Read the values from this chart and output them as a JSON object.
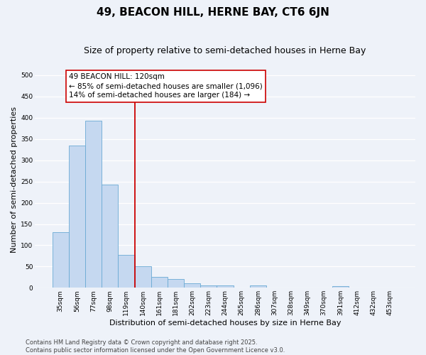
{
  "title": "49, BEACON HILL, HERNE BAY, CT6 6JN",
  "subtitle": "Size of property relative to semi-detached houses in Herne Bay",
  "xlabel": "Distribution of semi-detached houses by size in Herne Bay",
  "ylabel": "Number of semi-detached properties",
  "categories": [
    "35sqm",
    "56sqm",
    "77sqm",
    "98sqm",
    "119sqm",
    "140sqm",
    "161sqm",
    "181sqm",
    "202sqm",
    "223sqm",
    "244sqm",
    "265sqm",
    "286sqm",
    "307sqm",
    "328sqm",
    "349sqm",
    "370sqm",
    "391sqm",
    "412sqm",
    "432sqm",
    "453sqm"
  ],
  "values": [
    130,
    335,
    393,
    242,
    78,
    51,
    26,
    20,
    10,
    5,
    6,
    0,
    5,
    0,
    0,
    0,
    0,
    4,
    0,
    0,
    0
  ],
  "bar_color": "#c5d8f0",
  "bar_edge_color": "#6aaad4",
  "vline_index": 4,
  "vline_color": "#cc0000",
  "annotation_line1": "49 BEACON HILL: 120sqm",
  "annotation_line2": "← 85% of semi-detached houses are smaller (1,096)",
  "annotation_line3": "14% of semi-detached houses are larger (184) →",
  "annotation_box_color": "#ffffff",
  "annotation_box_edge": "#cc0000",
  "footer_text": "Contains HM Land Registry data © Crown copyright and database right 2025.\nContains public sector information licensed under the Open Government Licence v3.0.",
  "ylim": [
    0,
    510
  ],
  "yticks": [
    0,
    50,
    100,
    150,
    200,
    250,
    300,
    350,
    400,
    450,
    500
  ],
  "background_color": "#eef2f9",
  "grid_color": "#ffffff",
  "title_fontsize": 11,
  "subtitle_fontsize": 9,
  "tick_fontsize": 6.5,
  "ylabel_fontsize": 8,
  "xlabel_fontsize": 8,
  "annotation_fontsize": 7.5,
  "footer_fontsize": 6
}
